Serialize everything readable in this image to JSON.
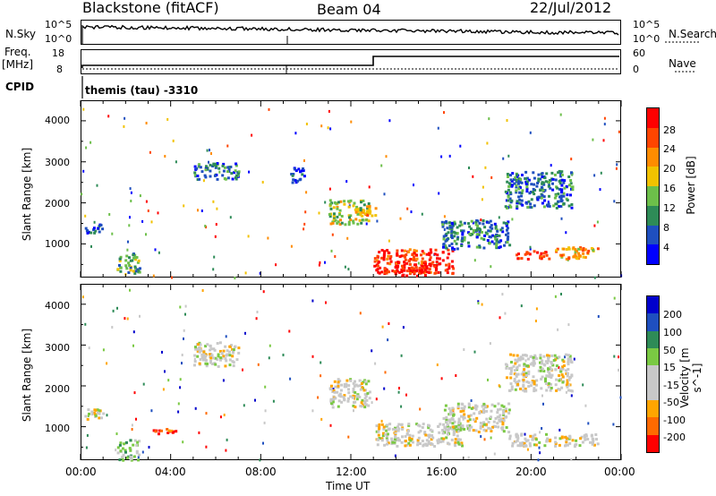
{
  "header": {
    "station": "Blackstone (fitACF)",
    "beam": "Beam 04",
    "date": "22/Jul/2012"
  },
  "noise_panel": {
    "left_label": "N.Sky",
    "right_label": "N.Search",
    "ticks_left": [
      "10^5",
      "10^0"
    ],
    "ticks_right": [
      "10^5",
      "10^0"
    ]
  },
  "freq_panel": {
    "left_label_line1": "Freq.",
    "left_label_line2": "[MHz]",
    "ticks_left": [
      "18",
      "8"
    ],
    "right_label": "Nave",
    "ticks_right": [
      "60",
      "0"
    ]
  },
  "cpid": {
    "label": "CPID",
    "value": "themis (tau) -3310"
  },
  "axes": {
    "ylabel": "Slant Range [km]",
    "xlabel": "Time UT",
    "xticks": [
      "00:00",
      "04:00",
      "08:00",
      "12:00",
      "16:00",
      "20:00",
      "00:00"
    ],
    "yticks": [
      "1000",
      "2000",
      "3000",
      "4000"
    ]
  },
  "colors": {
    "power": [
      "#0000ff",
      "#1f4fbf",
      "#2e8b57",
      "#6dbf4a",
      "#f2c200",
      "#ff8c00",
      "#ff4500",
      "#ff0000"
    ],
    "velocity": [
      "#ff0000",
      "#ff6a00",
      "#ffa500",
      "#c8c8c8",
      "#c8c8c8",
      "#7ac943",
      "#2e8b57",
      "#1f4fbf",
      "#0000cc"
    ]
  },
  "chart_data": [
    {
      "type": "heatmap",
      "title": "Power",
      "xlabel": "Time UT",
      "ylabel": "Slant Range [km]",
      "colorbar_label": "Power [dB]",
      "colorbar_ticks": [
        "4",
        "8",
        "12",
        "16",
        "20",
        "24",
        "28"
      ],
      "xlim": [
        0,
        24
      ],
      "ylim": [
        180,
        4500
      ],
      "regions": [
        {
          "t": [
            0.1,
            1.0
          ],
          "range": [
            1280,
            1500
          ],
          "level": 2
        },
        {
          "t": [
            1.6,
            2.6
          ],
          "range": [
            300,
            800
          ],
          "level": 3
        },
        {
          "t": [
            5.0,
            7.0
          ],
          "range": [
            2600,
            3000
          ],
          "level": 2
        },
        {
          "t": [
            9.3,
            9.9
          ],
          "range": [
            2500,
            2900
          ],
          "level": 1
        },
        {
          "t": [
            11.0,
            12.8
          ],
          "range": [
            1500,
            2100
          ],
          "level": 4
        },
        {
          "t": [
            12.4,
            13.2
          ],
          "range": [
            1700,
            1900
          ],
          "level": 5
        },
        {
          "t": [
            13.0,
            16.5
          ],
          "range": [
            300,
            900
          ],
          "level": 7
        },
        {
          "t": [
            14.0,
            15.5
          ],
          "range": [
            250,
            600
          ],
          "level": 8
        },
        {
          "t": [
            16.0,
            19.0
          ],
          "range": [
            900,
            1600
          ],
          "level": 2
        },
        {
          "t": [
            19.3,
            20.8
          ],
          "range": [
            650,
            850
          ],
          "level": 7
        },
        {
          "t": [
            21.0,
            23.0
          ],
          "range": [
            650,
            950
          ],
          "level": 5
        },
        {
          "t": [
            18.8,
            21.8
          ],
          "range": [
            1900,
            2800
          ],
          "level": 2
        }
      ]
    },
    {
      "type": "heatmap",
      "title": "Velocity",
      "xlabel": "Time UT",
      "ylabel": "Slant Range [km]",
      "colorbar_label": "Velocity [m s^-1]",
      "colorbar_ticks": [
        "200",
        "100",
        "50",
        "15",
        "-15",
        "-50",
        "-100",
        "-200"
      ],
      "xlim": [
        0,
        24
      ],
      "ylim": [
        180,
        4500
      ],
      "regions": [
        {
          "t": [
            0.1,
            1.1
          ],
          "range": [
            1200,
            1450
          ],
          "level": 4
        },
        {
          "t": [
            3.2,
            4.3
          ],
          "range": [
            850,
            1000
          ],
          "level": 1
        },
        {
          "t": [
            1.6,
            2.6
          ],
          "range": [
            200,
            700
          ],
          "level": 5
        },
        {
          "t": [
            5.0,
            7.0
          ],
          "range": [
            2500,
            3100
          ],
          "level": 4
        },
        {
          "t": [
            11.0,
            12.8
          ],
          "range": [
            1500,
            2200
          ],
          "level": 4
        },
        {
          "t": [
            13.0,
            17.0
          ],
          "range": [
            550,
            1100
          ],
          "level": 4
        },
        {
          "t": [
            16.0,
            19.0
          ],
          "range": [
            900,
            1600
          ],
          "level": 4
        },
        {
          "t": [
            19.0,
            23.0
          ],
          "range": [
            550,
            850
          ],
          "level": 4
        },
        {
          "t": [
            18.8,
            21.8
          ],
          "range": [
            1900,
            2800
          ],
          "level": 4
        }
      ]
    }
  ]
}
